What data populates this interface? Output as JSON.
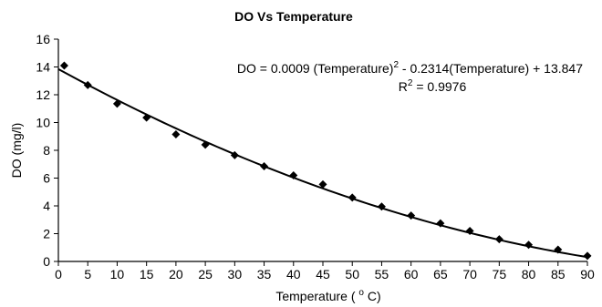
{
  "chart_data": {
    "type": "scatter",
    "title": "DO Vs Temperature",
    "xlabel": "Temperature ( ",
    "xlabel_sup": "o",
    "xlabel_end": " C)",
    "ylabel": "DO (mg/l)",
    "xlim": [
      0,
      90
    ],
    "ylim": [
      0,
      16
    ],
    "xticks": [
      0,
      5,
      10,
      15,
      20,
      25,
      30,
      35,
      40,
      45,
      50,
      55,
      60,
      65,
      70,
      75,
      80,
      85,
      90
    ],
    "yticks": [
      0,
      2,
      4,
      6,
      8,
      10,
      12,
      14,
      16
    ],
    "grid": false,
    "legend": false,
    "series": [
      {
        "marker": "diamond",
        "x": [
          1,
          5,
          10,
          15,
          20,
          25,
          30,
          35,
          40,
          45,
          50,
          55,
          60,
          65,
          70,
          75,
          80,
          85,
          90
        ],
        "y": [
          14.1,
          12.7,
          11.35,
          10.35,
          9.15,
          8.4,
          7.65,
          6.85,
          6.2,
          5.55,
          4.6,
          3.95,
          3.3,
          2.75,
          2.2,
          1.6,
          1.2,
          0.85,
          0.4
        ]
      }
    ],
    "trendline": {
      "type": "polynomial",
      "coefficients": [
        0.0009,
        -0.2314,
        13.847
      ],
      "equation_part1": "DO = 0.0009 (Temperature)",
      "equation_sup": "2",
      "equation_part2": " - 0.2314(Temperature) + 13.847",
      "r2_part1": "R",
      "r2_sup": "2",
      "r2_part2": " = 0.9976"
    }
  }
}
